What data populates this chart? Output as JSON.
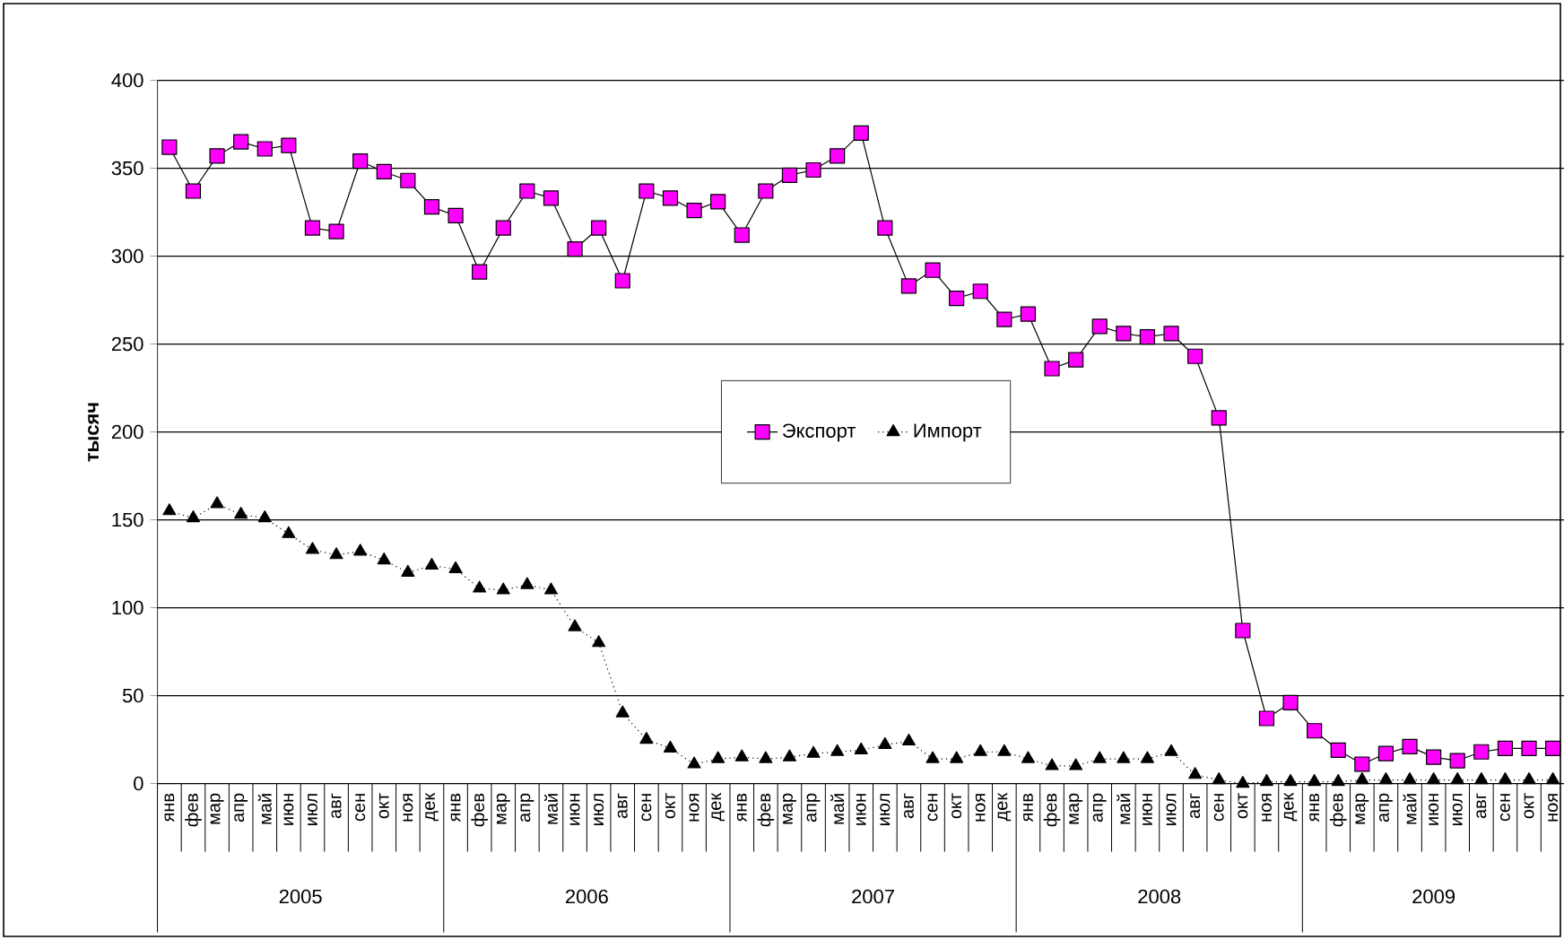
{
  "chart_data": {
    "type": "line",
    "ylabel": "тысяч",
    "categories": [
      "янв",
      "фев",
      "мар",
      "апр",
      "май",
      "июн",
      "июл",
      "авг",
      "сен",
      "окт",
      "ноя",
      "дек",
      "янв",
      "фев",
      "мар",
      "апр",
      "май",
      "июн",
      "июл",
      "авг",
      "сен",
      "окт",
      "ноя",
      "дек",
      "янв",
      "фев",
      "мар",
      "апр",
      "май",
      "июн",
      "июл",
      "авг",
      "сен",
      "окт",
      "ноя",
      "дек",
      "янв",
      "фев",
      "мар",
      "апр",
      "май",
      "июн",
      "июл",
      "авг",
      "сен",
      "окт",
      "ноя",
      "дек",
      "янв",
      "фев",
      "мар",
      "апр",
      "май",
      "июн",
      "июл",
      "авг",
      "сен",
      "окт",
      "ноя"
    ],
    "series": [
      {
        "name": "Экспорт",
        "color": "#ff00ff",
        "marker": "square",
        "line_style": "solid",
        "values": [
          362,
          337,
          357,
          365,
          361,
          363,
          316,
          314,
          354,
          348,
          343,
          328,
          323,
          291,
          316,
          337,
          333,
          304,
          316,
          286,
          337,
          333,
          326,
          331,
          312,
          337,
          346,
          349,
          357,
          370,
          316,
          283,
          292,
          276,
          280,
          264,
          267,
          236,
          241,
          260,
          256,
          254,
          256,
          243,
          208,
          87,
          37,
          46,
          30,
          19,
          11,
          17,
          21,
          15,
          13,
          18,
          20,
          20,
          20
        ]
      },
      {
        "name": "Импорт",
        "color": "#000000",
        "marker": "triangle",
        "line_style": "dotted",
        "values": [
          155,
          151,
          159,
          153,
          151,
          142,
          133,
          130,
          132,
          127,
          120,
          124,
          122,
          111,
          110,
          113,
          110,
          89,
          80,
          40,
          25,
          20,
          11,
          14,
          15,
          14,
          15,
          17,
          18,
          19,
          22,
          24,
          14,
          14,
          18,
          18,
          14,
          10,
          10,
          14,
          14,
          14,
          18,
          5,
          2,
          0,
          1,
          1,
          1,
          1,
          2,
          2,
          2,
          2,
          2,
          2,
          2,
          2,
          2
        ]
      }
    ],
    "ylim": [
      0,
      400
    ],
    "yticks": [
      0,
      50,
      100,
      150,
      200,
      250,
      300,
      350,
      400
    ],
    "grid": "y",
    "legend": "center",
    "annotations": [
      "2005",
      "2006",
      "2007",
      "2008",
      "2009"
    ]
  }
}
